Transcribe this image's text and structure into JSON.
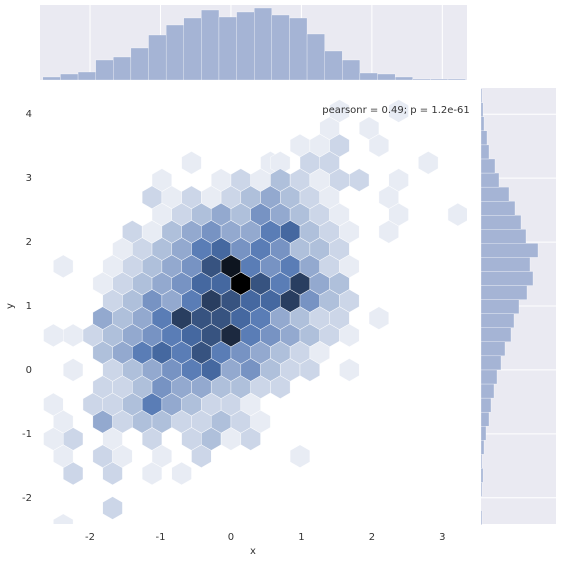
{
  "chart_data": {
    "type": "hexbin",
    "annotation": "pearsonr = 0.49; p = 1.2e-61",
    "xlabel": "x",
    "ylabel": "y",
    "xlim": [
      -2.71,
      3.35
    ],
    "ylim": [
      -2.41,
      4.41
    ],
    "xticks": [
      -2,
      -1,
      0,
      1,
      2,
      3
    ],
    "yticks": [
      -2,
      -1,
      0,
      1,
      2,
      3,
      4
    ],
    "cmap": [
      "#e8ecf4",
      "#4c72b0",
      "#000000"
    ],
    "max_count": 12,
    "rows": [
      {
        "y": 4.05,
        "x": [
          1.54,
          2.38
        ],
        "counts": [
          1,
          1
        ]
      },
      {
        "y": 3.78,
        "x": [
          1.4,
          1.96
        ],
        "counts": [
          1,
          1
        ]
      },
      {
        "y": 3.51,
        "x": [
          0.98,
          1.26,
          1.54,
          2.1
        ],
        "counts": [
          1,
          1,
          2,
          1
        ]
      },
      {
        "y": 3.24,
        "x": [
          -0.56,
          0.56,
          0.7,
          1.12,
          1.4,
          2.8
        ],
        "counts": [
          1,
          1,
          1,
          2,
          2,
          1
        ]
      },
      {
        "y": 2.97,
        "x": [
          -0.98,
          -0.14,
          0.14,
          0.42,
          0.7,
          0.98,
          1.26,
          1.54,
          1.82,
          2.38
        ],
        "counts": [
          1,
          1,
          2,
          1,
          3,
          2,
          1,
          2,
          2,
          1
        ]
      },
      {
        "y": 2.7,
        "x": [
          -1.12,
          -0.84,
          -0.56,
          -0.28,
          0,
          0.28,
          0.56,
          0.84,
          1.12,
          1.4,
          2.24
        ],
        "counts": [
          2,
          1,
          2,
          1,
          2,
          3,
          4,
          3,
          2,
          1,
          1
        ]
      },
      {
        "y": 2.43,
        "x": [
          -0.98,
          -0.7,
          -0.42,
          -0.14,
          0.14,
          0.42,
          0.7,
          0.98,
          1.26,
          1.54,
          2.38,
          3.22
        ],
        "counts": [
          1,
          2,
          3,
          4,
          3,
          5,
          4,
          3,
          2,
          1,
          1,
          1
        ]
      },
      {
        "y": 2.16,
        "x": [
          -1.4,
          -1.12,
          -0.84,
          -0.56,
          -0.28,
          0,
          0.28,
          0.56,
          0.84,
          1.12,
          1.4,
          1.68,
          2.24
        ],
        "counts": [
          2,
          1,
          3,
          4,
          5,
          4,
          4,
          6,
          7,
          3,
          2,
          1,
          1
        ]
      },
      {
        "y": 1.89,
        "x": [
          -1.54,
          -1.26,
          -0.98,
          -0.7,
          -0.42,
          -0.14,
          0.14,
          0.42,
          0.7,
          0.98,
          1.26,
          1.54
        ],
        "counts": [
          1,
          2,
          3,
          4,
          6,
          7,
          5,
          6,
          5,
          3,
          3,
          2
        ]
      },
      {
        "y": 1.62,
        "x": [
          -2.38,
          -1.68,
          -1.4,
          -1.12,
          -0.84,
          -0.56,
          -0.28,
          0,
          0.28,
          0.56,
          0.84,
          1.12,
          1.4,
          1.68
        ],
        "counts": [
          1,
          1,
          2,
          3,
          4,
          5,
          8,
          11,
          6,
          5,
          6,
          4,
          2,
          1
        ]
      },
      {
        "y": 1.35,
        "x": [
          -1.82,
          -1.54,
          -1.26,
          -0.98,
          -0.7,
          -0.42,
          -0.14,
          0.14,
          0.42,
          0.7,
          0.98,
          1.26,
          1.54
        ],
        "counts": [
          1,
          2,
          3,
          4,
          5,
          7,
          7,
          12,
          8,
          6,
          9,
          4,
          3
        ]
      },
      {
        "y": 1.08,
        "x": [
          -1.68,
          -1.4,
          -1.12,
          -0.84,
          -0.56,
          -0.28,
          0,
          0.28,
          0.56,
          0.84,
          1.12,
          1.4,
          1.68
        ],
        "counts": [
          2,
          3,
          5,
          4,
          6,
          9,
          8,
          7,
          7,
          9,
          5,
          3,
          2
        ]
      },
      {
        "y": 0.81,
        "x": [
          -1.82,
          -1.54,
          -1.26,
          -0.98,
          -0.7,
          -0.42,
          -0.14,
          0.14,
          0.42,
          0.7,
          0.98,
          1.26,
          1.54,
          2.1
        ],
        "counts": [
          4,
          3,
          4,
          6,
          9,
          8,
          8,
          7,
          6,
          4,
          3,
          2,
          2,
          1
        ]
      },
      {
        "y": 0.54,
        "x": [
          -2.52,
          -2.24,
          -1.96,
          -1.68,
          -1.4,
          -1.12,
          -0.84,
          -0.56,
          -0.28,
          0,
          0.28,
          0.56,
          0.84,
          1.12,
          1.4,
          1.68
        ],
        "counts": [
          1,
          1,
          2,
          3,
          4,
          5,
          6,
          7,
          8,
          10,
          6,
          5,
          4,
          3,
          2,
          1
        ]
      },
      {
        "y": 0.27,
        "x": [
          -1.82,
          -1.54,
          -1.26,
          -0.98,
          -0.7,
          -0.42,
          -0.14,
          0.14,
          0.42,
          0.7,
          0.98,
          1.26
        ],
        "counts": [
          3,
          4,
          6,
          7,
          6,
          8,
          6,
          5,
          4,
          3,
          2,
          1
        ]
      },
      {
        "y": 0,
        "x": [
          -2.24,
          -1.68,
          -1.4,
          -1.12,
          -0.84,
          -0.56,
          -0.28,
          0,
          0.28,
          0.56,
          0.84,
          1.12,
          1.68
        ],
        "counts": [
          1,
          2,
          3,
          4,
          5,
          6,
          7,
          4,
          5,
          3,
          2,
          2,
          1
        ]
      },
      {
        "y": -0.27,
        "x": [
          -1.82,
          -1.54,
          -1.26,
          -0.98,
          -0.7,
          -0.42,
          -0.14,
          0.14,
          0.42,
          0.7
        ],
        "counts": [
          2,
          2,
          3,
          5,
          4,
          4,
          3,
          3,
          2,
          2
        ]
      },
      {
        "y": -0.54,
        "x": [
          -2.52,
          -1.96,
          -1.68,
          -1.4,
          -1.12,
          -0.84,
          -0.56,
          -0.28,
          0,
          0.28
        ],
        "counts": [
          1,
          2,
          2,
          3,
          6,
          4,
          3,
          2,
          2,
          1
        ]
      },
      {
        "y": -0.81,
        "x": [
          -2.38,
          -1.82,
          -1.54,
          -1.26,
          -0.98,
          -0.7,
          -0.42,
          -0.14,
          0.14,
          0.42
        ],
        "counts": [
          1,
          4,
          2,
          3,
          3,
          2,
          2,
          3,
          2,
          1
        ]
      },
      {
        "y": -1.08,
        "x": [
          -2.52,
          -2.24,
          -1.68,
          -1.12,
          -0.56,
          -0.28,
          0,
          0.28
        ],
        "counts": [
          1,
          2,
          1,
          2,
          2,
          3,
          1,
          2
        ]
      },
      {
        "y": -1.35,
        "x": [
          -2.38,
          -1.82,
          -1.54,
          -0.98,
          -0.42,
          0.98
        ],
        "counts": [
          1,
          2,
          1,
          1,
          2,
          1
        ]
      },
      {
        "y": -1.62,
        "x": [
          -2.24,
          -1.68,
          -1.12,
          -0.7
        ],
        "counts": [
          2,
          2,
          1,
          1
        ]
      },
      {
        "y": -2.16,
        "x": [
          -1.68
        ],
        "counts": [
          2
        ]
      },
      {
        "y": -2.43,
        "x": [
          -2.38
        ],
        "counts": [
          1
        ]
      }
    ],
    "hist_color": "#a5b4d5",
    "x_hist": {
      "bins": [
        -2.67,
        -2.42,
        -2.17,
        -1.92,
        -1.67,
        -1.42,
        -1.17,
        -0.92,
        -0.67,
        -0.42,
        -0.17,
        0.08,
        0.33,
        0.58,
        0.83,
        1.08,
        1.33,
        1.58,
        1.83,
        2.08,
        2.33,
        2.58,
        2.83,
        3.08,
        3.33
      ],
      "counts": [
        3,
        6,
        8,
        20,
        23,
        32,
        45,
        55,
        62,
        70,
        63,
        68,
        72,
        65,
        62,
        46,
        29,
        20,
        7,
        6,
        3,
        1,
        1,
        1
      ],
      "ylim": [
        0,
        75
      ]
    },
    "y_hist": {
      "bins": [
        -2.42,
        -2.2,
        -1.98,
        -1.76,
        -1.54,
        -1.32,
        -1.1,
        -0.88,
        -0.66,
        -0.44,
        -0.22,
        0,
        0.22,
        0.44,
        0.66,
        0.88,
        1.1,
        1.32,
        1.54,
        1.76,
        1.98,
        2.2,
        2.42,
        2.64,
        2.86,
        3.08,
        3.3,
        3.52,
        3.74,
        3.96,
        4.18,
        4.4
      ],
      "counts": [
        1,
        0,
        1,
        2,
        1,
        3,
        5,
        8,
        10,
        13,
        16,
        20,
        24,
        30,
        33,
        38,
        46,
        52,
        49,
        57,
        45,
        40,
        34,
        28,
        18,
        14,
        8,
        6,
        3,
        2,
        1
      ],
      "xlim": [
        0,
        75
      ]
    }
  }
}
